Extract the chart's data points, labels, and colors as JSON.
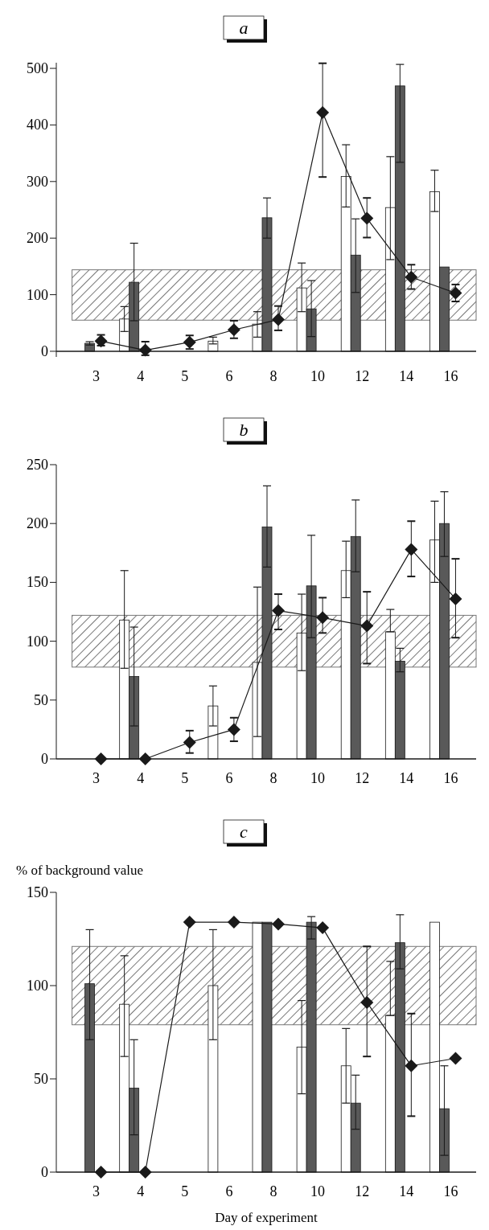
{
  "chart_data": [
    {
      "type": "bar",
      "title": "a",
      "categories": [
        "3",
        "4",
        "5",
        "6",
        "8",
        "10",
        "12",
        "14",
        "16"
      ],
      "ylim": [
        -10,
        510
      ],
      "yticks": [
        0,
        100,
        200,
        300,
        400,
        500
      ],
      "marker": "diamond",
      "bands": [
        {
          "axis": "y",
          "from": 55,
          "to": 144
        }
      ],
      "series": [
        {
          "color": "#ffffff",
          "values": [
            null,
            57,
            null,
            18,
            48,
            112,
            309,
            254,
            282
          ],
          "errors": [
            null,
            [
              35,
              79
            ],
            null,
            [
              13,
              25
            ],
            [
              25,
              70
            ],
            [
              70,
              156
            ],
            [
              255,
              365
            ],
            [
              162,
              344
            ],
            [
              247,
              320
            ]
          ]
        },
        {
          "color": "#595959",
          "values": [
            14,
            122,
            null,
            null,
            236,
            75,
            170,
            469,
            149
          ],
          "errors": [
            [
              11,
              17
            ],
            [
              54,
              191
            ],
            null,
            null,
            [
              200,
              271
            ],
            [
              26,
              125
            ],
            [
              104,
              234
            ],
            [
              334,
              507
            ],
            null
          ]
        },
        {
          "type": "line",
          "color": "#1a1a1a",
          "values": [
            18,
            2,
            16,
            38,
            56,
            422,
            235,
            131,
            103
          ],
          "errors": [
            [
              10,
              29
            ],
            [
              -7,
              17
            ],
            [
              4,
              28
            ],
            [
              23,
              54
            ],
            [
              37,
              80
            ],
            [
              308,
              509
            ],
            [
              201,
              271
            ],
            [
              110,
              153
            ],
            [
              88,
              118
            ]
          ]
        }
      ]
    },
    {
      "type": "bar",
      "title": "b",
      "categories": [
        "3",
        "4",
        "5",
        "6",
        "8",
        "10",
        "12",
        "14",
        "16"
      ],
      "ylim": [
        0,
        250
      ],
      "yticks": [
        0,
        50,
        100,
        150,
        200,
        250
      ],
      "marker": "diamond",
      "bands": [
        {
          "axis": "y",
          "from": 78,
          "to": 122
        }
      ],
      "series": [
        {
          "color": "#ffffff",
          "values": [
            null,
            118,
            null,
            45,
            82,
            107,
            160,
            108,
            186
          ],
          "errors": [
            null,
            [
              77,
              160
            ],
            null,
            [
              28,
              62
            ],
            [
              19,
              146
            ],
            [
              75,
              140
            ],
            [
              137,
              185
            ],
            [
              108,
              127
            ],
            [
              150,
              219
            ]
          ]
        },
        {
          "color": "#595959",
          "values": [
            null,
            70,
            null,
            null,
            197,
            147,
            189,
            83,
            200
          ],
          "errors": [
            null,
            [
              28,
              112
            ],
            null,
            null,
            [
              163,
              232
            ],
            [
              103,
              190
            ],
            [
              159,
              220
            ],
            [
              74,
              94
            ],
            [
              172,
              227
            ]
          ]
        },
        {
          "type": "line",
          "color": "#1a1a1a",
          "values": [
            0,
            0,
            14,
            25,
            126,
            120,
            113,
            178,
            136
          ],
          "errors": [
            null,
            null,
            [
              5,
              24
            ],
            [
              15,
              35
            ],
            [
              110,
              140
            ],
            [
              107,
              137
            ],
            [
              81,
              142
            ],
            [
              155,
              202
            ],
            [
              103,
              170
            ]
          ]
        }
      ]
    },
    {
      "type": "bar",
      "title": "c",
      "xlabel": "Day of experiment",
      "ylabel": "% of background value",
      "categories": [
        "3",
        "4",
        "5",
        "6",
        "8",
        "10",
        "12",
        "14",
        "16"
      ],
      "ylim": [
        0,
        150
      ],
      "yticks": [
        0,
        50,
        100,
        150
      ],
      "marker": "diamond",
      "bands": [
        {
          "axis": "y",
          "from": 79,
          "to": 121
        }
      ],
      "series": [
        {
          "color": "#ffffff",
          "values": [
            null,
            90,
            null,
            100,
            134,
            67,
            57,
            84,
            134
          ],
          "errors": [
            null,
            [
              62,
              116
            ],
            null,
            [
              71,
              130
            ],
            null,
            [
              42,
              92
            ],
            [
              37,
              77
            ],
            [
              84,
              113
            ],
            null
          ]
        },
        {
          "color": "#595959",
          "values": [
            101,
            45,
            null,
            null,
            134,
            134,
            37,
            123,
            34
          ],
          "errors": [
            [
              71,
              130
            ],
            [
              20,
              71
            ],
            null,
            null,
            null,
            [
              125,
              137
            ],
            [
              23,
              52
            ],
            [
              109,
              138
            ],
            [
              9,
              57
            ]
          ]
        },
        {
          "type": "line",
          "color": "#1a1a1a",
          "values": [
            0,
            0,
            134,
            134,
            133,
            131,
            91,
            57,
            61
          ],
          "errors": [
            null,
            null,
            null,
            null,
            null,
            null,
            [
              62,
              121
            ],
            [
              30,
              85
            ],
            null
          ]
        }
      ]
    }
  ]
}
